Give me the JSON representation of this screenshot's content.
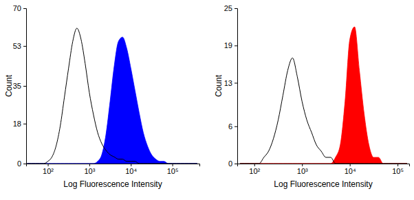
{
  "chart_data": [
    {
      "type": "line",
      "log": "x",
      "x_label": "Log Fluorescence Intensity",
      "y_label": "Count",
      "xlim": [
        30,
        450000
      ],
      "xticks": [
        {
          "value": 100,
          "label": "10²"
        },
        {
          "value": 1000,
          "label": "10³"
        },
        {
          "value": 10000,
          "label": "10⁴"
        },
        {
          "value": 100000,
          "label": "10⁵"
        }
      ],
      "ylim": [
        0,
        70
      ],
      "yticks": [
        0,
        18,
        35,
        53,
        70
      ],
      "x": [
        31.62,
        39.81,
        50.12,
        63.1,
        79.43,
        100,
        125.9,
        158.5,
        199.5,
        251.2,
        316.2,
        398.1,
        501.2,
        631,
        794.3,
        1000,
        1259,
        1585,
        1995,
        2512,
        3162,
        3981,
        5012,
        6310,
        7943,
        10000,
        12589,
        15849,
        19953,
        25119,
        31623,
        39811,
        50119,
        63096,
        79433,
        100000,
        125893,
        158489,
        199526,
        251189,
        316228,
        398107
      ],
      "series": [
        {
          "type": "line",
          "color": "#000000",
          "values": [
            0,
            0,
            0,
            0,
            0,
            1,
            3,
            8,
            17,
            30,
            43,
            55,
            61,
            56,
            45,
            32,
            22,
            14,
            9,
            6,
            4,
            3,
            2,
            2,
            1,
            1,
            1,
            0,
            0,
            0,
            0,
            0,
            0,
            0,
            0,
            0,
            0,
            0,
            0,
            0,
            0,
            0
          ]
        },
        {
          "type": "area",
          "color": "#0000ff",
          "values": [
            0,
            0,
            0,
            0,
            0,
            0,
            0,
            0,
            0,
            0,
            0,
            0,
            0,
            0,
            0,
            0,
            0,
            1,
            4,
            13,
            28,
            44,
            55,
            57,
            52,
            43,
            33,
            23,
            14,
            8,
            4,
            2,
            1,
            1,
            0,
            0,
            0,
            0,
            0,
            0,
            0,
            0
          ]
        }
      ]
    },
    {
      "type": "line",
      "log": "x",
      "x_label": "Log Fluorescence Intensity",
      "y_label": "Count",
      "xlim": [
        44,
        175000
      ],
      "xticks": [
        {
          "value": 100,
          "label": "10²"
        },
        {
          "value": 1000,
          "label": "10³"
        },
        {
          "value": 10000,
          "label": "10⁴"
        },
        {
          "value": 100000,
          "label": "10⁵"
        }
      ],
      "ylim": [
        0,
        25
      ],
      "yticks": [
        0,
        6,
        13,
        19,
        25
      ],
      "x": [
        50.12,
        63.1,
        79.43,
        100,
        125.9,
        158.5,
        199.5,
        251.2,
        316.2,
        398.1,
        501.2,
        631,
        794.3,
        1000,
        1259,
        1585,
        1995,
        2512,
        3162,
        3981,
        5012,
        6310,
        7943,
        10000,
        12589,
        15849,
        19953,
        25119,
        31623,
        39811,
        50119,
        63096,
        79433,
        100000,
        125893,
        158489
      ],
      "series": [
        {
          "type": "line",
          "color": "#000000",
          "values": [
            0,
            0,
            0,
            0,
            0,
            1,
            2,
            4,
            7,
            11,
            15,
            17,
            14,
            10,
            7,
            5,
            3,
            2,
            1,
            1,
            0,
            0,
            0,
            0,
            0,
            0,
            0,
            0,
            0,
            0,
            0,
            0,
            0,
            0,
            0,
            0
          ]
        },
        {
          "type": "area",
          "color": "#ff0000",
          "values": [
            0,
            0,
            0,
            0,
            0,
            0,
            0,
            0,
            0,
            0,
            0,
            0,
            0,
            0,
            0,
            0,
            0,
            0,
            0,
            0,
            1,
            3,
            10,
            20,
            22,
            15,
            8,
            3,
            1,
            1,
            0,
            0,
            0,
            0,
            0,
            0
          ]
        }
      ]
    }
  ]
}
